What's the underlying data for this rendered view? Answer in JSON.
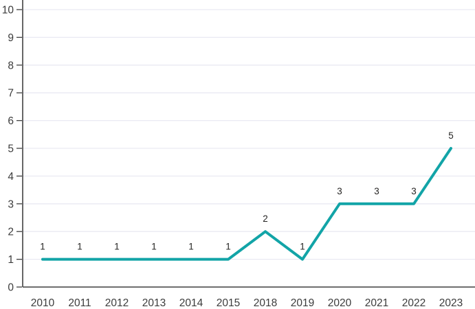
{
  "chart_data": {
    "type": "line",
    "title": "",
    "xlabel": "",
    "ylabel": "",
    "categories": [
      "2010",
      "2011",
      "2012",
      "2013",
      "2014",
      "2015",
      "2018",
      "2019",
      "2020",
      "2021",
      "2022",
      "2023"
    ],
    "values": [
      1,
      1,
      1,
      1,
      1,
      1,
      2,
      1,
      3,
      3,
      3,
      5
    ],
    "data_labels": [
      "1",
      "1",
      "1",
      "1",
      "1",
      "1",
      "2",
      "1",
      "3",
      "3",
      "3",
      "5"
    ],
    "ylim": [
      0,
      10
    ],
    "y_ticks": [
      0,
      1,
      2,
      3,
      4,
      5,
      6,
      7,
      8,
      9,
      10
    ],
    "grid": true,
    "legend": "none",
    "colors": {
      "line": "#12a4a7",
      "grid": "#e9e9f2",
      "axis": "#3f3f3f",
      "tick_label": "#3b3b3b",
      "data_label": "#252423",
      "background": "#ffffff"
    }
  }
}
